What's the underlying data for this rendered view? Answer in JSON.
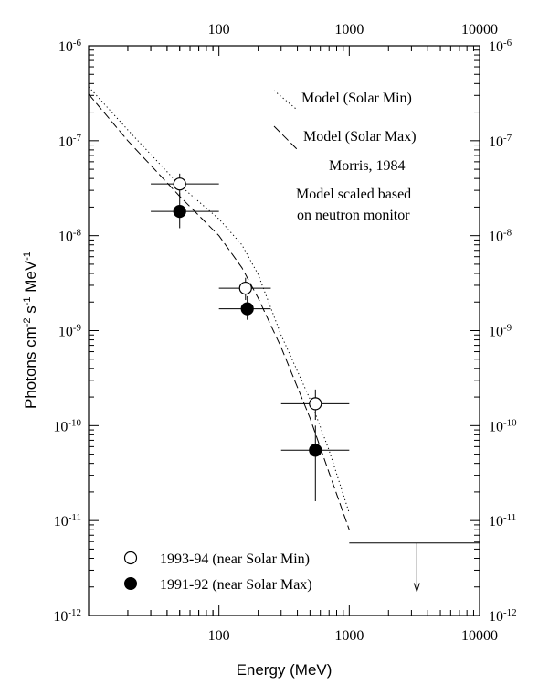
{
  "chart_data": {
    "type": "scatter",
    "xscale": "log",
    "yscale": "log",
    "xlim": [
      10,
      10000
    ],
    "ylim": [
      1e-12,
      1e-06
    ],
    "xlabel": "Energy (MeV)",
    "ylabel": {
      "base": "Photons cm",
      "exp1": "-2",
      "mid": " s",
      "exp2": "-1",
      "end": " MeV",
      "exp3": "-1"
    },
    "x_ticks": [
      {
        "value": 100,
        "label": "100"
      },
      {
        "value": 1000,
        "label": "1000"
      },
      {
        "value": 10000,
        "label": "10000"
      }
    ],
    "top_ticks": [
      {
        "value": 100,
        "label": "100"
      },
      {
        "value": 1000,
        "label": "1000"
      },
      {
        "value": 10000,
        "label": "10000"
      }
    ],
    "y_ticks": [
      {
        "value": 1e-06,
        "base": "10",
        "exp": "-6"
      },
      {
        "value": 1e-07,
        "base": "10",
        "exp": "-7"
      },
      {
        "value": 1e-08,
        "base": "10",
        "exp": "-8"
      },
      {
        "value": 1e-09,
        "base": "10",
        "exp": "-9"
      },
      {
        "value": 1e-10,
        "base": "10",
        "exp": "-10"
      },
      {
        "value": 1e-11,
        "base": "10",
        "exp": "-11"
      },
      {
        "value": 1e-12,
        "base": "10",
        "exp": "-12"
      }
    ],
    "models": [
      {
        "name": "Model (Solar Min)",
        "style": "dotted",
        "points": [
          [
            10,
            3.7e-07
          ],
          [
            20,
            1.3e-07
          ],
          [
            50,
            3.4e-08
          ],
          [
            100,
            1.5e-08
          ],
          [
            150,
            8e-09
          ],
          [
            200,
            3.9e-09
          ],
          [
            300,
            9e-10
          ],
          [
            500,
            1.9e-10
          ],
          [
            700,
            5.5e-11
          ],
          [
            1000,
            1.2e-11
          ]
        ]
      },
      {
        "name": "Model (Solar Max)",
        "style": "dashed",
        "points": [
          [
            10,
            3.1e-07
          ],
          [
            20,
            1e-07
          ],
          [
            50,
            2.6e-08
          ],
          [
            100,
            1e-08
          ],
          [
            150,
            4.6e-09
          ],
          [
            200,
            2.2e-09
          ],
          [
            300,
            6.7e-10
          ],
          [
            500,
            1.2e-10
          ],
          [
            700,
            3.2e-11
          ],
          [
            1000,
            8e-12
          ]
        ]
      }
    ],
    "series": [
      {
        "name": "1993-94 (near Solar Min)",
        "marker": "open-circle",
        "points": [
          {
            "x": 50,
            "y": 3.5e-08,
            "xerr": [
              30,
              100
            ],
            "yerr": [
              2.6e-08,
              4.5e-08
            ]
          },
          {
            "x": 160,
            "y": 2.8e-09,
            "xerr": [
              100,
              250
            ],
            "yerr": [
              2.1e-09,
              3.6e-09
            ]
          },
          {
            "x": 550,
            "y": 1.7e-10,
            "xerr": [
              300,
              1000
            ],
            "yerr": [
              1.15e-10,
              2.4e-10
            ]
          }
        ]
      },
      {
        "name": "1991-92 (near Solar Max)",
        "marker": "filled-circle",
        "points": [
          {
            "x": 50,
            "y": 1.8e-08,
            "xerr": [
              30,
              100
            ],
            "yerr": [
              1.2e-08,
              2.8e-08
            ]
          },
          {
            "x": 165,
            "y": 1.7e-09,
            "xerr": [
              100,
              250
            ],
            "yerr": [
              1.3e-09,
              2.3e-09
            ]
          },
          {
            "x": 550,
            "y": 5.5e-11,
            "xerr": [
              300,
              1000
            ],
            "yerr": [
              1.6e-11,
              1e-10
            ]
          }
        ]
      }
    ],
    "upper_limit": {
      "x_range": [
        1000,
        10000
      ],
      "y": 5.8e-12,
      "arrow_x": 3300,
      "arrow_to_y": 1.8e-12
    },
    "annotations": {
      "legend_model_min": "Model (Solar Min)",
      "legend_model_max": "Model (Solar Max)",
      "reference": "Morris, 1984",
      "note_line1": "Model scaled based",
      "note_line2": "on neutron monitor",
      "legend_open": "1993-94 (near Solar Min)",
      "legend_filled": "1991-92 (near Solar Max)"
    }
  }
}
